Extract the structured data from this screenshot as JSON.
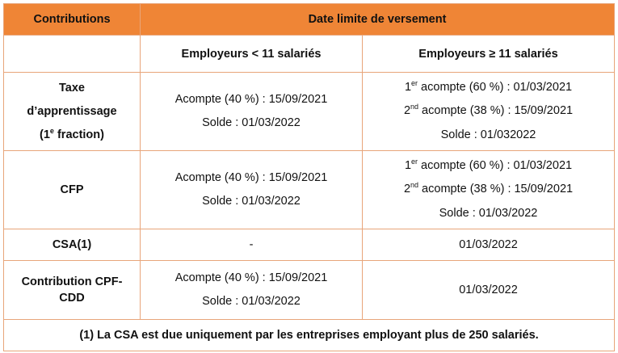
{
  "header": {
    "col1": "Contributions",
    "col2": "Date limite de versement"
  },
  "subheader": {
    "small": "Employeurs < 11 salariés",
    "large": "Employeurs ≥ 11 salariés"
  },
  "rows": {
    "taxe": {
      "label": {
        "l1": "Taxe",
        "l2": "d’apprentissage",
        "l3_pre": "(1",
        "l3_sup": "e",
        "l3_post": " fraction)"
      },
      "small": {
        "l1": "Acompte (40 %) : 15/09/2021",
        "l2": "Solde : 01/03/2022"
      },
      "large": {
        "l1_pre": "1",
        "l1_sup": "er",
        "l1_post": " acompte (60 %) : 01/03/2021",
        "l2_pre": "2",
        "l2_sup": "nd",
        "l2_post": " acompte (38 %) : 15/09/2021",
        "l3": "Solde : 01/032022"
      }
    },
    "cfp": {
      "label": "CFP",
      "small": {
        "l1": "Acompte (40 %) : 15/09/2021",
        "l2": "Solde : 01/03/2022"
      },
      "large": {
        "l1_pre": "1",
        "l1_sup": "er",
        "l1_post": " acompte (60 %) : 01/03/2021",
        "l2_pre": "2",
        "l2_sup": "nd",
        "l2_post": " acompte (38 %) : 15/09/2021",
        "l3": "Solde : 01/03/2022"
      }
    },
    "csa": {
      "label": "CSA(1)",
      "small": "-",
      "large": "01/03/2022"
    },
    "cpf": {
      "label": {
        "l1": "Contribution CPF-",
        "l2": "CDD"
      },
      "small": {
        "l1": "Acompte (40 %) : 15/09/2021",
        "l2": "Solde : 01/03/2022"
      },
      "large": "01/03/2022"
    }
  },
  "note": "(1) La CSA est due uniquement par les entreprises employant plus de 250 salariés.",
  "colors": {
    "header_bg": "#ef8536",
    "border": "#e8a57a"
  }
}
